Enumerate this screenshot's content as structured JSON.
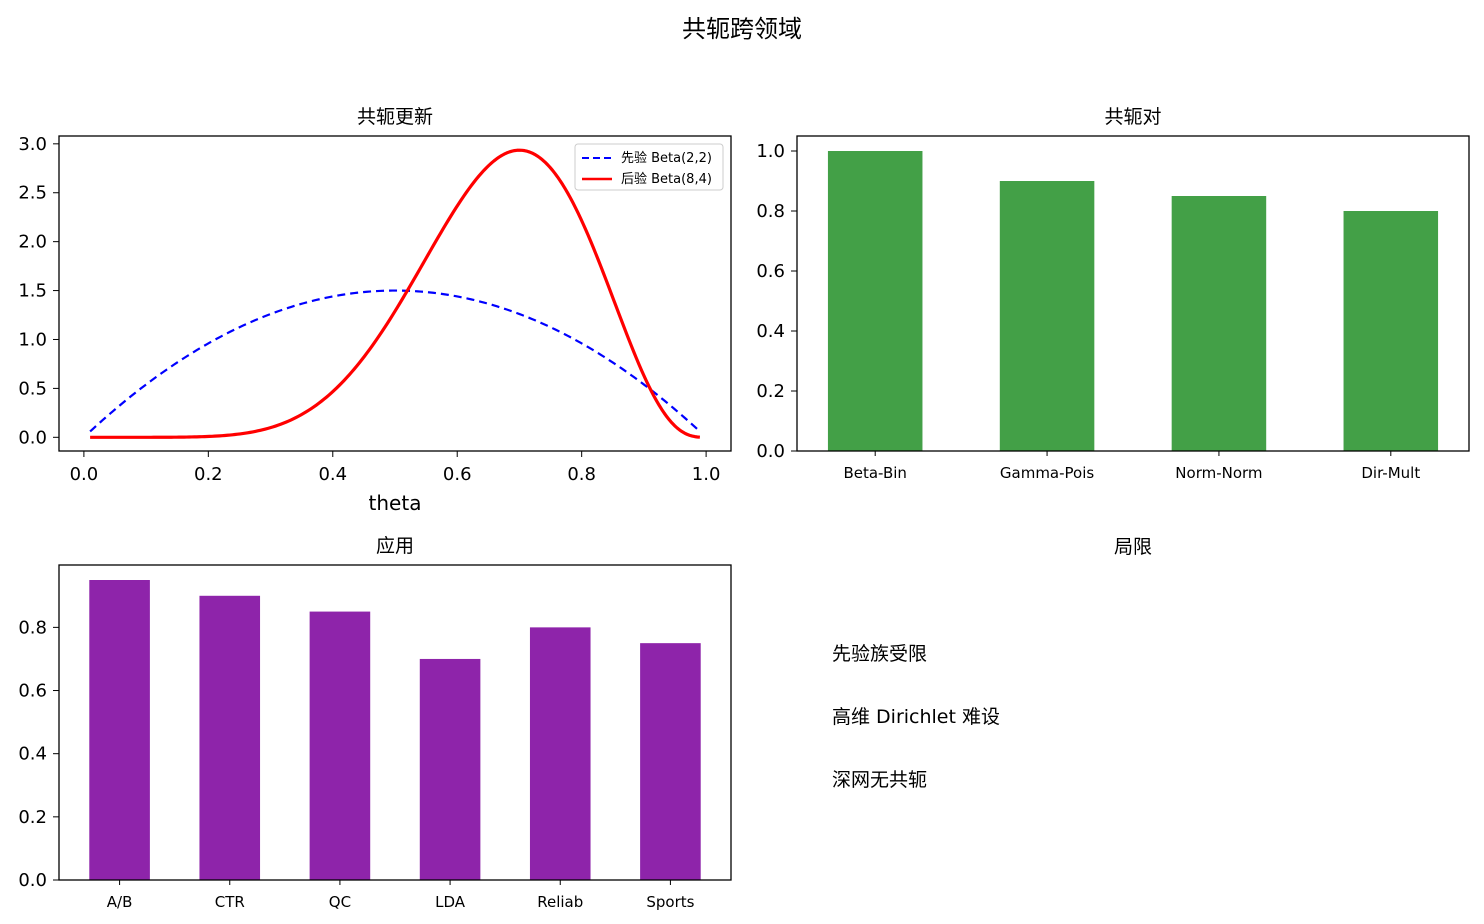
{
  "figure_title": "共轭跨领域",
  "chart_data": [
    {
      "type": "line",
      "title": "共轭更新",
      "xlabel": "theta",
      "ylabel": "",
      "xlim": [
        -0.04,
        1.04
      ],
      "ylim": [
        -0.14,
        3.08
      ],
      "xticks": [
        0.0,
        0.2,
        0.4,
        0.6,
        0.8,
        1.0
      ],
      "xtick_labels": [
        "0.0",
        "0.2",
        "0.4",
        "0.6",
        "0.8",
        "1.0"
      ],
      "yticks": [
        0.0,
        0.5,
        1.0,
        1.5,
        2.0,
        2.5,
        3.0
      ],
      "ytick_labels": [
        "0.0",
        "0.5",
        "1.0",
        "1.5",
        "2.0",
        "2.5",
        "3.0"
      ],
      "legend_position": "top-right",
      "x_range": [
        0.01,
        0.99
      ],
      "series": [
        {
          "name": "先验 Beta(2,2)",
          "color": "#0000ff",
          "style": "dashed",
          "x": [
            0.01,
            0.1,
            0.2,
            0.3,
            0.4,
            0.5,
            0.6,
            0.7,
            0.8,
            0.9,
            0.99
          ],
          "y": [
            0.06,
            0.54,
            0.96,
            1.26,
            1.44,
            1.5,
            1.44,
            1.26,
            0.96,
            0.54,
            0.06
          ]
        },
        {
          "name": "后验 Beta(8,4)",
          "color": "#ff0000",
          "style": "solid",
          "x": [
            0.01,
            0.1,
            0.2,
            0.3,
            0.4,
            0.5,
            0.6,
            0.7,
            0.8,
            0.9,
            0.99
          ],
          "y": [
            0.0,
            0.0,
            0.02,
            0.12,
            0.47,
            1.29,
            2.42,
            2.93,
            2.08,
            0.63,
            0.0
          ]
        }
      ]
    },
    {
      "type": "bar",
      "title": "共轭对",
      "categories": [
        "Beta-Bin",
        "Gamma-Pois",
        "Norm-Norm",
        "Dir-Mult"
      ],
      "values": [
        1.0,
        0.9,
        0.85,
        0.8
      ],
      "color": "#43a047",
      "xlabel": "",
      "ylabel": "",
      "ylim": [
        0,
        1.05
      ],
      "yticks": [
        0.0,
        0.2,
        0.4,
        0.6,
        0.8,
        1.0
      ],
      "ytick_labels": [
        "0.0",
        "0.2",
        "0.4",
        "0.6",
        "0.8",
        "1.0"
      ]
    },
    {
      "type": "bar",
      "title": "应用",
      "categories": [
        "A/B",
        "CTR",
        "QC",
        "LDA",
        "Reliab",
        "Sports"
      ],
      "values": [
        0.95,
        0.9,
        0.85,
        0.7,
        0.8,
        0.75
      ],
      "color": "#8e24aa",
      "xlabel": "",
      "ylabel": "",
      "ylim": [
        0,
        0.9975
      ],
      "yticks": [
        0.0,
        0.2,
        0.4,
        0.6,
        0.8
      ],
      "ytick_labels": [
        "0.0",
        "0.2",
        "0.4",
        "0.6",
        "0.8"
      ]
    }
  ],
  "text_panel": {
    "title": "局限",
    "lines": [
      "先验族受限",
      "高维 Dirichlet 难设",
      "深网无共轭"
    ]
  }
}
